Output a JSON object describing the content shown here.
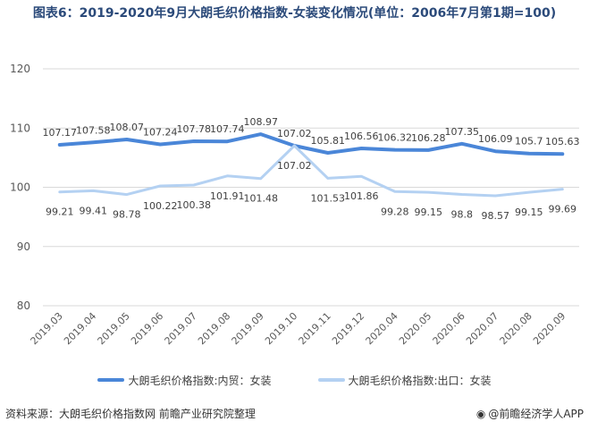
{
  "title": "图表6：2019-2020年9月大朗毛织价格指数-女装变化情况(单位：2006年7月第1期=100)",
  "source": "资料来源：大朗毛织价格指数网  前瞻产业研究院整理",
  "brand": "@前瞻经济学人APP",
  "colors": {
    "domestic": "#4a86d8",
    "export": "#b4d1f2",
    "grid": "#d9d9d9"
  },
  "chart_data": {
    "type": "line",
    "categories": [
      "2019.03",
      "2019.04",
      "2019.05",
      "2019.06",
      "2019.07",
      "2019.08",
      "2019.09",
      "2019.10",
      "2019.11",
      "2019.12",
      "2020.04",
      "2020.05",
      "2020.06",
      "2020.07",
      "2020.08",
      "2020.09"
    ],
    "ylim": [
      80,
      120
    ],
    "yticks": [
      80,
      90,
      100,
      110,
      120
    ],
    "series": [
      {
        "name": "大朗毛织价格指数:内贸：女装",
        "values": [
          107.17,
          107.58,
          108.07,
          107.24,
          107.78,
          107.74,
          108.97,
          107.02,
          105.81,
          106.56,
          106.32,
          106.28,
          107.35,
          106.09,
          105.7,
          105.63
        ]
      },
      {
        "name": "大朗毛织价格指数:出口：女装",
        "values": [
          99.21,
          99.41,
          98.78,
          100.22,
          100.38,
          101.91,
          101.48,
          107.02,
          101.53,
          101.86,
          99.28,
          99.15,
          98.8,
          98.57,
          99.15,
          99.69
        ]
      }
    ],
    "legend": "bottom"
  }
}
